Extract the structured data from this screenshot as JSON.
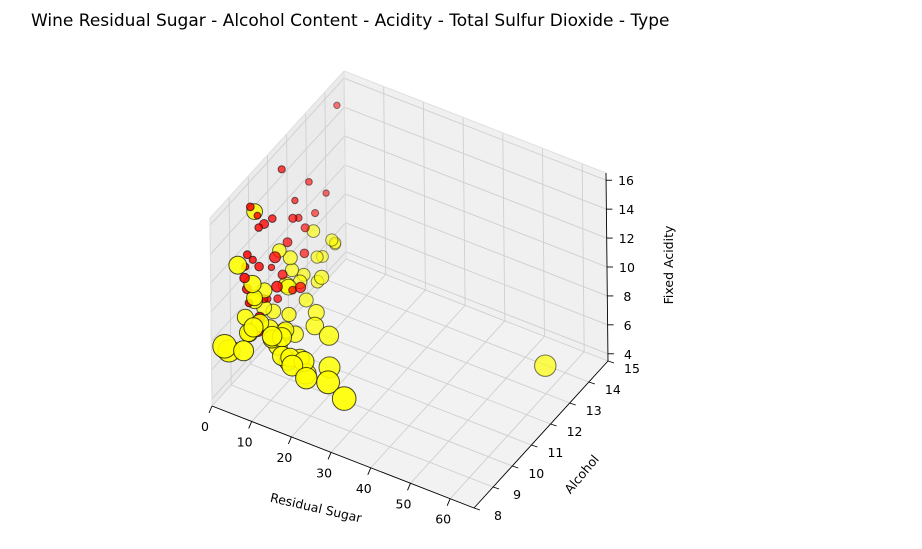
{
  "chart_data": {
    "type": "scatter",
    "projection": "3d",
    "title": "Wine Residual Sugar - Alcohol Content - Acidity - Total Sulfur Dioxide - Type",
    "xlabel": "Residual Sugar",
    "ylabel": "Alcohol",
    "zlabel": "Fixed Acidity",
    "xlim": [
      0,
      66
    ],
    "ylim": [
      8,
      15
    ],
    "zlim": [
      3.5,
      16.5
    ],
    "xticks": [
      "0",
      "10",
      "20",
      "30",
      "40",
      "50",
      "60"
    ],
    "yticks": [
      "8",
      "9",
      "10",
      "11",
      "12",
      "13",
      "14",
      "15"
    ],
    "zticks": [
      "4",
      "6",
      "8",
      "10",
      "12",
      "14",
      "16"
    ],
    "grid": true,
    "size_encoding": "Total Sulfur Dioxide",
    "color_encoding": "Type",
    "series": [
      {
        "color": "#ff0000",
        "points": [
          [
            2.0,
            9.5,
            12.0,
            40
          ],
          [
            1.9,
            9.8,
            11.2,
            30
          ],
          [
            2.5,
            10.0,
            10.5,
            50
          ],
          [
            2.3,
            9.4,
            9.8,
            60
          ],
          [
            1.8,
            9.6,
            8.5,
            35
          ],
          [
            2.6,
            10.2,
            8.0,
            45
          ],
          [
            2.1,
            10.5,
            7.5,
            25
          ],
          [
            3.0,
            9.9,
            7.2,
            70
          ],
          [
            2.2,
            11.0,
            6.8,
            40
          ],
          [
            1.7,
            10.8,
            9.2,
            20
          ],
          [
            2.4,
            11.5,
            10.0,
            55
          ],
          [
            2.8,
            12.0,
            11.0,
            30
          ],
          [
            2.0,
            12.5,
            9.5,
            45
          ],
          [
            2.9,
            11.8,
            12.5,
            20
          ],
          [
            3.5,
            10.5,
            13.2,
            35
          ],
          [
            2.2,
            10.0,
            14.0,
            25
          ],
          [
            1.9,
            9.7,
            15.0,
            40
          ],
          [
            2.6,
            11.2,
            15.5,
            30
          ],
          [
            4.0,
            10.9,
            8.8,
            60
          ],
          [
            5.5,
            10.3,
            9.0,
            80
          ],
          [
            6.0,
            11.0,
            7.8,
            40
          ],
          [
            4.5,
            9.5,
            7.0,
            90
          ],
          [
            3.2,
            12.2,
            8.3,
            50
          ],
          [
            2.1,
            13.0,
            9.8,
            30
          ],
          [
            2.5,
            13.5,
            10.5,
            20
          ],
          [
            1.6,
            12.8,
            12.2,
            25
          ],
          [
            3.8,
            11.5,
            11.8,
            45
          ],
          [
            2.7,
            9.2,
            10.9,
            65
          ],
          [
            2.0,
            10.1,
            13.0,
            35
          ],
          [
            8.0,
            11.0,
            8.2,
            75
          ],
          [
            3.0,
            14.0,
            15.9,
            20
          ],
          [
            2.3,
            9.8,
            6.5,
            40
          ],
          [
            1.9,
            10.4,
            12.8,
            55
          ],
          [
            2.4,
            9.3,
            11.5,
            30
          ],
          [
            3.1,
            10.7,
            10.2,
            85
          ]
        ]
      },
      {
        "color": "#ffff00",
        "points": [
          [
            1.2,
            10.5,
            6.8,
            140
          ],
          [
            2.0,
            11.5,
            7.0,
            150
          ],
          [
            5.0,
            10.0,
            6.5,
            170
          ],
          [
            8.0,
            9.5,
            6.8,
            180
          ],
          [
            12.0,
            9.2,
            6.5,
            200
          ],
          [
            15.0,
            9.0,
            7.0,
            190
          ],
          [
            18.0,
            9.1,
            6.9,
            210
          ],
          [
            10.0,
            9.8,
            7.2,
            160
          ],
          [
            6.0,
            10.8,
            6.4,
            130
          ],
          [
            3.0,
            12.0,
            6.6,
            120
          ],
          [
            1.5,
            12.5,
            6.2,
            110
          ],
          [
            2.5,
            13.0,
            6.8,
            100
          ],
          [
            4.0,
            11.2,
            7.5,
            150
          ],
          [
            7.0,
            10.3,
            6.0,
            175
          ],
          [
            9.0,
            9.6,
            6.3,
            190
          ],
          [
            11.0,
            9.4,
            7.4,
            200
          ],
          [
            13.0,
            9.3,
            6.1,
            185
          ],
          [
            16.0,
            8.9,
            6.7,
            220
          ],
          [
            20.0,
            8.8,
            6.4,
            230
          ],
          [
            1.1,
            11.0,
            5.8,
            135
          ],
          [
            1.4,
            13.5,
            6.0,
            95
          ],
          [
            2.2,
            14.0,
            6.3,
            90
          ],
          [
            3.5,
            12.8,
            5.5,
            105
          ],
          [
            5.5,
            11.8,
            5.9,
            125
          ],
          [
            8.5,
            10.6,
            5.6,
            160
          ],
          [
            14.0,
            9.7,
            5.8,
            195
          ],
          [
            1.3,
            10.0,
            8.0,
            145
          ],
          [
            1.8,
            9.4,
            7.8,
            155
          ],
          [
            4.5,
            9.0,
            7.6,
            180
          ],
          [
            6.5,
            9.2,
            8.2,
            170
          ],
          [
            2.8,
            10.2,
            8.6,
            140
          ],
          [
            1.6,
            11.8,
            8.4,
            125
          ],
          [
            3.2,
            9.6,
            9.0,
            150
          ],
          [
            10.5,
            9.0,
            8.0,
            205
          ],
          [
            17.0,
            9.4,
            5.5,
            215
          ],
          [
            1.0,
            12.0,
            7.2,
            115
          ],
          [
            26.0,
            8.7,
            6.9,
            250
          ],
          [
            31.0,
            8.5,
            6.6,
            260
          ],
          [
            65.8,
            11.8,
            7.8,
            230
          ],
          [
            1.2,
            14.2,
            5.8,
            85
          ],
          [
            22.0,
            9.6,
            6.2,
            225
          ],
          [
            0.9,
            9.8,
            6.0,
            160
          ],
          [
            7.5,
            12.2,
            7.1,
            130
          ],
          [
            12.5,
            10.8,
            6.3,
            175
          ],
          [
            19.0,
            10.2,
            7.2,
            200
          ],
          [
            3.8,
            13.5,
            7.4,
            100
          ],
          [
            5.2,
            8.6,
            7.0,
            210
          ],
          [
            9.5,
            11.5,
            5.9,
            155
          ],
          [
            0.9,
            8.5,
            7.0,
            260
          ],
          [
            1.0,
            8.7,
            6.4,
            240
          ],
          [
            2.0,
            9.0,
            12.0,
            180
          ],
          [
            1.5,
            10.0,
            14.2,
            150
          ],
          [
            4.2,
            9.3,
            10.5,
            170
          ],
          [
            1.8,
            11.2,
            9.8,
            120
          ],
          [
            6.8,
            8.8,
            8.5,
            200
          ],
          [
            2.6,
            12.8,
            8.9,
            105
          ]
        ]
      }
    ]
  }
}
